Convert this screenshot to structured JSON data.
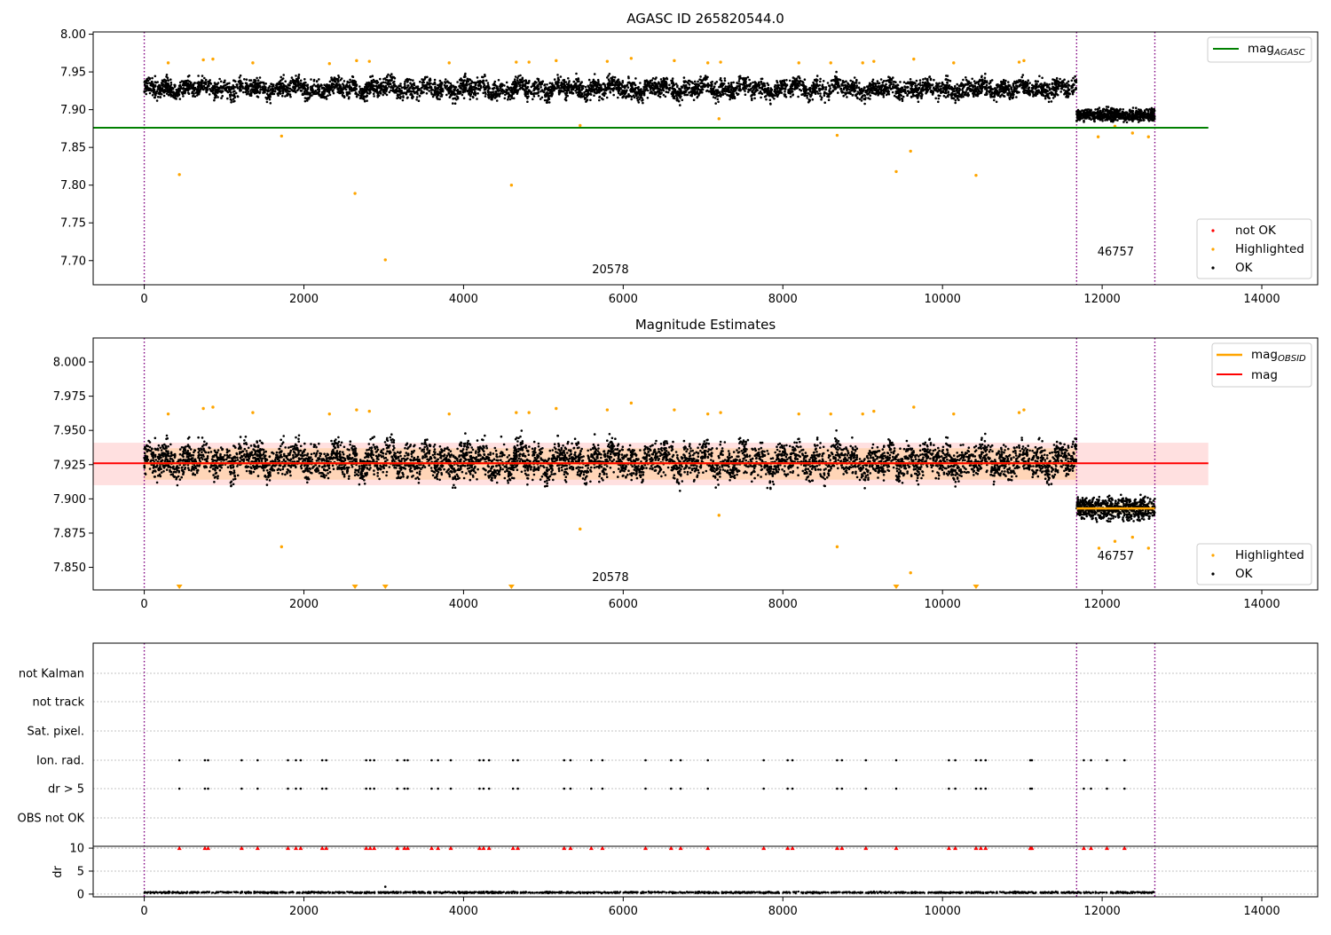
{
  "chart_data": [
    {
      "type": "scatter",
      "title": "AGASC ID 265820544.0",
      "xlim": [
        -640,
        14700
      ],
      "ylim": [
        7.668,
        8.003
      ],
      "xticks": [
        0,
        2000,
        4000,
        6000,
        8000,
        10000,
        12000,
        14000
      ],
      "yticks": [
        7.7,
        7.75,
        7.8,
        7.85,
        7.9,
        7.95,
        8.0
      ],
      "ytick_labels": [
        "7.70",
        "7.75",
        "7.80",
        "7.85",
        "7.90",
        "7.95",
        "8.00"
      ],
      "obs_boundaries": [
        0,
        11680,
        12660
      ],
      "obs_labels": [
        {
          "text": "20578",
          "x": 5840,
          "y": 7.683
        },
        {
          "text": "46757",
          "x": 12170,
          "y": 7.707
        }
      ],
      "mag_agasc": {
        "value": 7.876,
        "x_range": [
          -640,
          13330
        ]
      },
      "series": [
        {
          "name": "not OK",
          "color": "#ff0000",
          "points": []
        },
        {
          "name": "Highlighted",
          "color": "#ffa500",
          "points": [
            [
              440,
              7.814
            ],
            [
              1720,
              7.865
            ],
            [
              2640,
              7.789
            ],
            [
              3020,
              7.701
            ],
            [
              4600,
              7.8
            ],
            [
              5460,
              7.879
            ],
            [
              7200,
              7.888
            ],
            [
              8680,
              7.866
            ],
            [
              9420,
              7.818
            ],
            [
              9600,
              7.845
            ],
            [
              10420,
              7.813
            ],
            [
              11950,
              7.864
            ],
            [
              12160,
              7.878
            ],
            [
              12380,
              7.869
            ],
            [
              12580,
              7.864
            ],
            [
              300,
              7.962
            ],
            [
              740,
              7.966
            ],
            [
              860,
              7.967
            ],
            [
              1360,
              7.962
            ],
            [
              2320,
              7.961
            ],
            [
              2660,
              7.965
            ],
            [
              2820,
              7.964
            ],
            [
              3820,
              7.962
            ],
            [
              4660,
              7.963
            ],
            [
              4820,
              7.963
            ],
            [
              5160,
              7.965
            ],
            [
              5800,
              7.964
            ],
            [
              6100,
              7.968
            ],
            [
              6640,
              7.965
            ],
            [
              7060,
              7.962
            ],
            [
              7220,
              7.963
            ],
            [
              8200,
              7.962
            ],
            [
              8600,
              7.962
            ],
            [
              9000,
              7.962
            ],
            [
              9140,
              7.964
            ],
            [
              9640,
              7.967
            ],
            [
              10140,
              7.962
            ],
            [
              10960,
              7.963
            ],
            [
              11020,
              7.965
            ]
          ]
        },
        {
          "name": "OK",
          "color": "#000000",
          "points": []
        }
      ],
      "ok_model": {
        "x_range": [
          0,
          11680
        ],
        "center": 7.928,
        "spread": 0.018,
        "tail_x_range": [
          11680,
          12660
        ],
        "tail_center": 7.893,
        "tail_spread": 0.012,
        "count": 5200
      },
      "legend": {
        "lines": [
          {
            "label": "mag_AGASC",
            "color": "#008000"
          }
        ],
        "points": [
          {
            "label": "not OK",
            "color": "#ff0000"
          },
          {
            "label": "Highlighted",
            "color": "#ffa500"
          },
          {
            "label": "OK",
            "color": "#000000"
          }
        ]
      }
    },
    {
      "type": "scatter",
      "title": "Magnitude Estimates",
      "xlim": [
        -640,
        14700
      ],
      "ylim": [
        7.8335,
        8.0175
      ],
      "xticks": [
        0,
        2000,
        4000,
        6000,
        8000,
        10000,
        12000,
        14000
      ],
      "yticks": [
        7.85,
        7.875,
        7.9,
        7.925,
        7.95,
        7.975,
        8.0
      ],
      "ytick_labels": [
        "7.850",
        "7.875",
        "7.900",
        "7.925",
        "7.950",
        "7.975",
        "8.000"
      ],
      "obs_boundaries": [
        0,
        11680,
        12660
      ],
      "obs_labels": [
        {
          "text": "20578",
          "x": 5840,
          "y": 7.84
        },
        {
          "text": "46757",
          "x": 12170,
          "y": 7.8555
        }
      ],
      "mag": {
        "value": 7.926,
        "band": [
          7.91,
          7.941
        ],
        "x_range": [
          -640,
          13330
        ],
        "color": "#ff0000"
      },
      "mag_obsid": [
        {
          "value": 7.926,
          "band": [
            7.914,
            7.937
          ],
          "x_range": [
            0,
            11680
          ]
        },
        {
          "value": 7.893,
          "band": [
            7.889,
            7.897
          ],
          "x_range": [
            11680,
            12660
          ]
        }
      ],
      "highlighted_points": [
        [
          300,
          7.962
        ],
        [
          740,
          7.966
        ],
        [
          860,
          7.967
        ],
        [
          1360,
          7.963
        ],
        [
          1720,
          7.865
        ],
        [
          2320,
          7.962
        ],
        [
          2660,
          7.965
        ],
        [
          2820,
          7.964
        ],
        [
          3820,
          7.962
        ],
        [
          4660,
          7.963
        ],
        [
          4820,
          7.963
        ],
        [
          5160,
          7.966
        ],
        [
          5460,
          7.878
        ],
        [
          5800,
          7.965
        ],
        [
          6100,
          7.97
        ],
        [
          6640,
          7.965
        ],
        [
          7060,
          7.962
        ],
        [
          7200,
          7.888
        ],
        [
          7220,
          7.963
        ],
        [
          8200,
          7.962
        ],
        [
          8600,
          7.962
        ],
        [
          8680,
          7.865
        ],
        [
          9000,
          7.962
        ],
        [
          9140,
          7.964
        ],
        [
          9600,
          7.846
        ],
        [
          9640,
          7.967
        ],
        [
          10140,
          7.962
        ],
        [
          10960,
          7.963
        ],
        [
          11020,
          7.965
        ],
        [
          11960,
          7.864
        ],
        [
          12160,
          7.869
        ],
        [
          12380,
          7.872
        ],
        [
          12580,
          7.864
        ]
      ],
      "offscale_low_markers": [
        440,
        2640,
        3020,
        4600,
        9420,
        10420
      ],
      "legend": {
        "lines": [
          {
            "label": "mag_OBSID",
            "color": "#ffa500"
          },
          {
            "label": "mag",
            "color": "#ff0000"
          }
        ],
        "points": [
          {
            "label": "Highlighted",
            "color": "#ffa500"
          },
          {
            "label": "OK",
            "color": "#000000"
          }
        ]
      }
    },
    {
      "type": "scatter",
      "xlim": [
        -640,
        14700
      ],
      "xticks": [
        0,
        2000,
        4000,
        6000,
        8000,
        10000,
        12000,
        14000
      ],
      "obs_boundaries": [
        0,
        11680,
        12660
      ],
      "flag_rows": [
        "not Kalman",
        "not track",
        "Sat. pixel.",
        "Ion. rad.",
        "dr > 5",
        "OBS not OK"
      ],
      "flag_events": [
        440,
        760,
        800,
        1220,
        1420,
        1800,
        1900,
        1960,
        2230,
        2280,
        2780,
        2830,
        2880,
        3170,
        3260,
        3300,
        3600,
        3680,
        3840,
        4200,
        4250,
        4320,
        4620,
        4680,
        5260,
        5340,
        5600,
        5740,
        6280,
        6600,
        6720,
        7060,
        7760,
        8060,
        8120,
        8680,
        8740,
        9040,
        9420,
        10080,
        10160,
        10420,
        10480,
        10540,
        11100,
        11120,
        11770,
        11860,
        12060,
        12280
      ],
      "dr": {
        "ylabel": "dr",
        "yticks": [
          0,
          5,
          10
        ],
        "ylim": [
          -0.6,
          10.4
        ],
        "typical": 0.35,
        "outlier": [
          3020,
          1.6
        ]
      }
    }
  ]
}
